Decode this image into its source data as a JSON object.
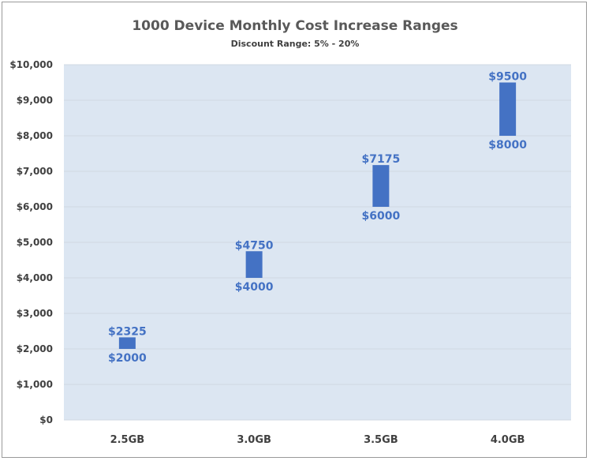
{
  "chart_data": {
    "type": "bar",
    "title": "1000 Device Monthly Cost Increase Ranges",
    "subtitle": "Discount Range: 5% - 20%",
    "categories": [
      "2.5GB",
      "3.0GB",
      "3.5GB",
      "4.0GB"
    ],
    "series": [
      {
        "low": 2000,
        "high": 2325,
        "low_label": "$2000",
        "high_label": "$2325"
      },
      {
        "low": 4000,
        "high": 4750,
        "low_label": "$4000",
        "high_label": "$4750"
      },
      {
        "low": 6000,
        "high": 7175,
        "low_label": "$6000",
        "high_label": "$7175"
      },
      {
        "low": 8000,
        "high": 9500,
        "low_label": "$8000",
        "high_label": "$9500"
      }
    ],
    "ylim": [
      0,
      10000
    ],
    "yticks": [
      0,
      1000,
      2000,
      3000,
      4000,
      5000,
      6000,
      7000,
      8000,
      9000,
      10000
    ],
    "ytick_labels": [
      "$0",
      "$1,000",
      "$2,000",
      "$3,000",
      "$4,000",
      "$5,000",
      "$6,000",
      "$7,000",
      "$8,000",
      "$9,000",
      "$10,000"
    ],
    "xlabel": "",
    "ylabel": "",
    "grid": true,
    "legend": "none",
    "colors": {
      "bar": "#4472c4",
      "label": "#4472c4",
      "plot_bg": "#dce6f2",
      "grid": "#cfd8e3"
    }
  }
}
